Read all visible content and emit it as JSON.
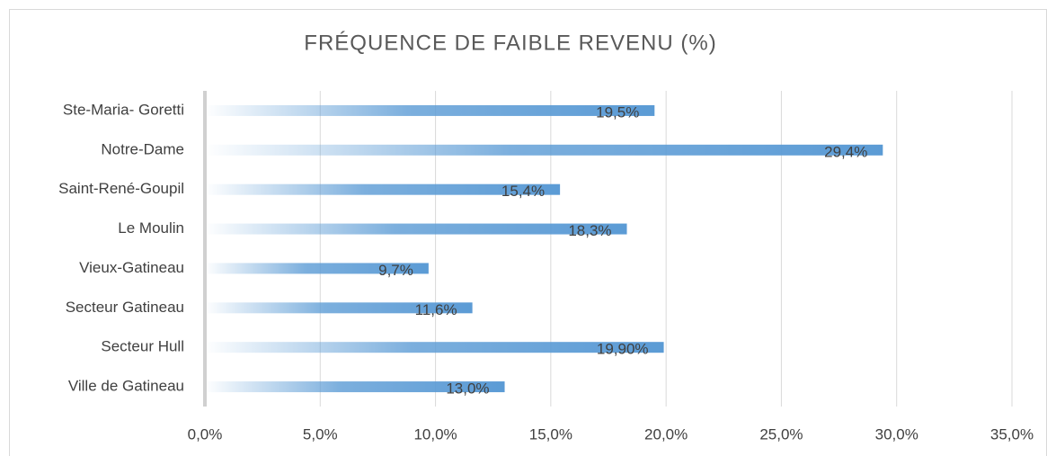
{
  "chart_data": {
    "type": "bar",
    "orientation": "horizontal",
    "title": "FRÉQUENCE DE FAIBLE REVENU (%)",
    "categories": [
      "Ste-Maria- Goretti",
      "Notre-Dame",
      "Saint-René-Goupil",
      "Le  Moulin",
      "Vieux-Gatineau",
      "Secteur Gatineau",
      "Secteur Hull",
      "Ville de Gatineau"
    ],
    "values": [
      19.5,
      29.4,
      15.4,
      18.3,
      9.7,
      11.6,
      19.9,
      13.0
    ],
    "value_labels": [
      "19,5%",
      "29,4%",
      "15,4%",
      "18,3%",
      "9,7%",
      "11,6%",
      "19,90%",
      "13,0%"
    ],
    "color": "#5b9bd5",
    "xlim": [
      0,
      35
    ],
    "xticks": [
      {
        "value": 0,
        "label": "0,0%"
      },
      {
        "value": 5,
        "label": "5,0%"
      },
      {
        "value": 10,
        "label": "10,0%"
      },
      {
        "value": 15,
        "label": "15,0%"
      },
      {
        "value": 20,
        "label": "20,0%"
      },
      {
        "value": 25,
        "label": "25,0%"
      },
      {
        "value": 30,
        "label": "30,0%"
      },
      {
        "value": 35,
        "label": "35,0%"
      }
    ],
    "grid": true
  }
}
